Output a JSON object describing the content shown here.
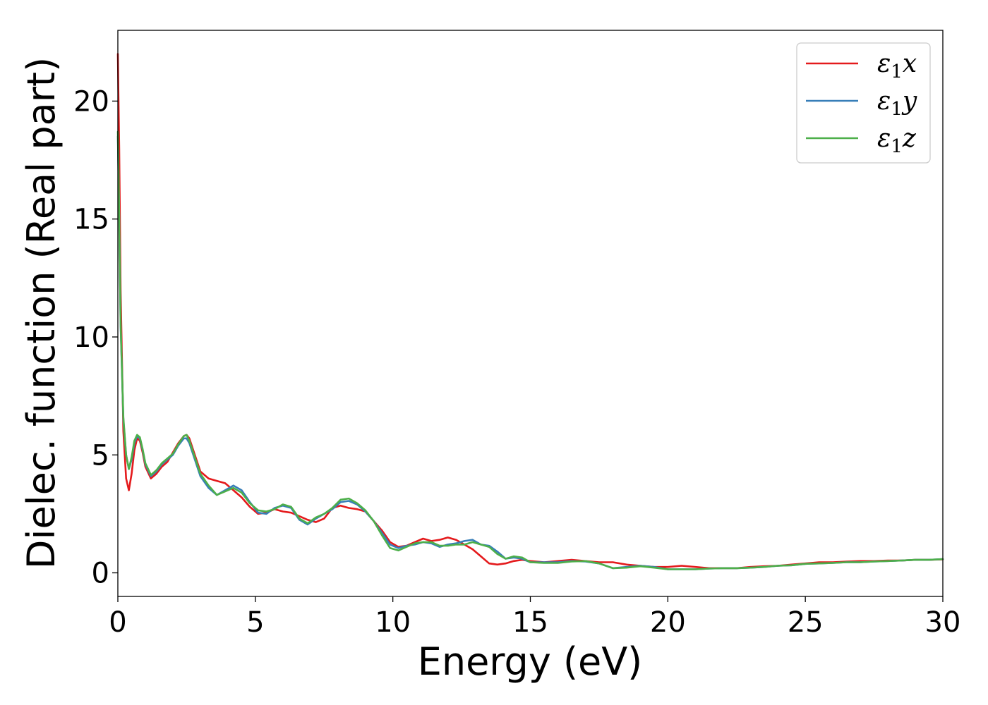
{
  "chart_data": {
    "type": "line",
    "title": "",
    "xlabel": "Energy (eV)",
    "ylabel": "Dielec. function (Real part)",
    "xlim": [
      0,
      30
    ],
    "ylim": [
      -1,
      23
    ],
    "xticks": [
      0,
      5,
      10,
      15,
      20,
      25,
      30
    ],
    "yticks": [
      0,
      5,
      10,
      15,
      20
    ],
    "grid": false,
    "legend_position": "top-right",
    "series": [
      {
        "name": "ε1x",
        "label_main": "ε",
        "label_sub": "1",
        "label_var": "x",
        "color": "#e41a1c",
        "x": [
          0,
          0.05,
          0.1,
          0.2,
          0.3,
          0.4,
          0.5,
          0.6,
          0.7,
          0.8,
          0.9,
          1.0,
          1.2,
          1.4,
          1.6,
          1.8,
          2.0,
          2.2,
          2.4,
          2.5,
          2.6,
          2.8,
          3.0,
          3.3,
          3.6,
          3.9,
          4.2,
          4.5,
          4.8,
          5.1,
          5.4,
          5.7,
          6.0,
          6.3,
          6.6,
          6.9,
          7.2,
          7.5,
          7.8,
          8.1,
          8.4,
          8.7,
          9.0,
          9.3,
          9.6,
          9.9,
          10.2,
          10.5,
          10.8,
          11.1,
          11.4,
          11.7,
          12.0,
          12.3,
          12.6,
          12.9,
          13.2,
          13.5,
          13.8,
          14.1,
          14.4,
          14.7,
          15.0,
          15.5,
          16.0,
          16.5,
          17.0,
          17.5,
          18.0,
          18.5,
          19.0,
          19.5,
          20.0,
          20.5,
          21.0,
          21.5,
          22.0,
          22.5,
          23.0,
          23.5,
          24.0,
          24.5,
          25.0,
          25.5,
          26.0,
          26.5,
          27.0,
          27.5,
          28.0,
          28.5,
          29.0,
          29.5,
          30.0
        ],
        "y": [
          22.0,
          18.0,
          12.0,
          6.0,
          4.0,
          3.5,
          4.2,
          5.2,
          5.7,
          5.6,
          5.1,
          4.5,
          4.0,
          4.2,
          4.5,
          4.7,
          5.1,
          5.5,
          5.8,
          5.85,
          5.7,
          5.0,
          4.3,
          4.0,
          3.9,
          3.8,
          3.5,
          3.2,
          2.8,
          2.5,
          2.55,
          2.7,
          2.6,
          2.55,
          2.4,
          2.25,
          2.15,
          2.3,
          2.75,
          2.85,
          2.75,
          2.7,
          2.6,
          2.2,
          1.8,
          1.3,
          1.1,
          1.15,
          1.3,
          1.45,
          1.35,
          1.4,
          1.5,
          1.4,
          1.2,
          1.0,
          0.7,
          0.4,
          0.35,
          0.4,
          0.5,
          0.55,
          0.5,
          0.45,
          0.5,
          0.55,
          0.5,
          0.45,
          0.45,
          0.35,
          0.3,
          0.25,
          0.25,
          0.3,
          0.25,
          0.2,
          0.2,
          0.2,
          0.25,
          0.28,
          0.3,
          0.35,
          0.4,
          0.45,
          0.45,
          0.48,
          0.5,
          0.5,
          0.52,
          0.52,
          0.55,
          0.55,
          0.57
        ]
      },
      {
        "name": "ε1y",
        "label_main": "ε",
        "label_sub": "1",
        "label_var": "y",
        "color": "#377eb8",
        "x": [
          0,
          0.05,
          0.1,
          0.2,
          0.3,
          0.4,
          0.5,
          0.6,
          0.7,
          0.8,
          0.9,
          1.0,
          1.2,
          1.4,
          1.6,
          1.8,
          2.0,
          2.2,
          2.4,
          2.5,
          2.6,
          2.8,
          3.0,
          3.3,
          3.6,
          3.9,
          4.2,
          4.5,
          4.8,
          5.1,
          5.4,
          5.7,
          6.0,
          6.3,
          6.6,
          6.9,
          7.2,
          7.5,
          7.8,
          8.1,
          8.4,
          8.7,
          9.0,
          9.3,
          9.6,
          9.9,
          10.2,
          10.5,
          10.8,
          11.1,
          11.4,
          11.7,
          12.0,
          12.3,
          12.6,
          12.9,
          13.2,
          13.5,
          13.8,
          14.1,
          14.4,
          14.7,
          15.0,
          15.5,
          16.0,
          16.5,
          17.0,
          17.5,
          18.0,
          18.5,
          19.0,
          19.5,
          20.0,
          20.5,
          21.0,
          21.5,
          22.0,
          22.5,
          23.0,
          23.5,
          24.0,
          24.5,
          25.0,
          25.5,
          26.0,
          26.5,
          27.0,
          27.5,
          28.0,
          28.5,
          29.0,
          29.5,
          30.0
        ],
        "y": [
          18.5,
          15.0,
          10.5,
          6.5,
          5.0,
          4.4,
          4.8,
          5.5,
          5.8,
          5.7,
          5.2,
          4.6,
          4.1,
          4.3,
          4.6,
          4.8,
          5.0,
          5.4,
          5.7,
          5.7,
          5.5,
          4.8,
          4.1,
          3.6,
          3.3,
          3.5,
          3.7,
          3.5,
          3.0,
          2.55,
          2.5,
          2.75,
          2.85,
          2.75,
          2.25,
          2.05,
          2.3,
          2.5,
          2.7,
          3.0,
          3.05,
          2.9,
          2.6,
          2.2,
          1.7,
          1.2,
          1.05,
          1.15,
          1.2,
          1.3,
          1.25,
          1.1,
          1.2,
          1.25,
          1.35,
          1.4,
          1.2,
          1.15,
          0.9,
          0.6,
          0.65,
          0.6,
          0.45,
          0.45,
          0.45,
          0.5,
          0.48,
          0.4,
          0.2,
          0.25,
          0.3,
          0.25,
          0.15,
          0.15,
          0.15,
          0.18,
          0.2,
          0.2,
          0.22,
          0.25,
          0.3,
          0.32,
          0.38,
          0.4,
          0.42,
          0.45,
          0.45,
          0.48,
          0.5,
          0.52,
          0.55,
          0.55,
          0.58
        ]
      },
      {
        "name": "ε1z",
        "label_main": "ε",
        "label_sub": "1",
        "label_var": "z",
        "color": "#4daf4a",
        "x": [
          0,
          0.05,
          0.1,
          0.2,
          0.3,
          0.4,
          0.5,
          0.6,
          0.7,
          0.8,
          0.9,
          1.0,
          1.2,
          1.4,
          1.6,
          1.8,
          2.0,
          2.2,
          2.4,
          2.5,
          2.6,
          2.8,
          3.0,
          3.3,
          3.6,
          3.9,
          4.2,
          4.5,
          4.8,
          5.1,
          5.4,
          5.7,
          6.0,
          6.3,
          6.6,
          6.9,
          7.2,
          7.5,
          7.8,
          8.1,
          8.4,
          8.7,
          9.0,
          9.3,
          9.6,
          9.9,
          10.2,
          10.5,
          10.8,
          11.1,
          11.4,
          11.7,
          12.0,
          12.3,
          12.6,
          12.9,
          13.2,
          13.5,
          13.8,
          14.1,
          14.4,
          14.7,
          15.0,
          15.5,
          16.0,
          16.5,
          17.0,
          17.5,
          18.0,
          18.5,
          19.0,
          19.5,
          20.0,
          20.5,
          21.0,
          21.5,
          22.0,
          22.5,
          23.0,
          23.5,
          24.0,
          24.5,
          25.0,
          25.5,
          26.0,
          26.5,
          27.0,
          27.5,
          28.0,
          28.5,
          29.0,
          29.5,
          30.0
        ],
        "y": [
          18.7,
          15.2,
          10.6,
          6.6,
          5.0,
          4.4,
          4.9,
          5.6,
          5.85,
          5.75,
          5.25,
          4.65,
          4.15,
          4.35,
          4.65,
          4.85,
          5.05,
          5.45,
          5.8,
          5.85,
          5.6,
          4.9,
          4.2,
          3.7,
          3.3,
          3.45,
          3.6,
          3.4,
          2.95,
          2.65,
          2.6,
          2.7,
          2.9,
          2.8,
          2.3,
          2.1,
          2.35,
          2.5,
          2.75,
          3.1,
          3.15,
          2.95,
          2.65,
          2.2,
          1.6,
          1.05,
          0.95,
          1.1,
          1.25,
          1.3,
          1.3,
          1.15,
          1.15,
          1.2,
          1.2,
          1.3,
          1.2,
          1.1,
          0.8,
          0.6,
          0.7,
          0.65,
          0.45,
          0.42,
          0.42,
          0.48,
          0.5,
          0.4,
          0.2,
          0.22,
          0.28,
          0.22,
          0.15,
          0.15,
          0.15,
          0.18,
          0.2,
          0.2,
          0.22,
          0.25,
          0.3,
          0.32,
          0.38,
          0.4,
          0.42,
          0.45,
          0.45,
          0.48,
          0.5,
          0.52,
          0.55,
          0.55,
          0.58
        ]
      }
    ]
  }
}
